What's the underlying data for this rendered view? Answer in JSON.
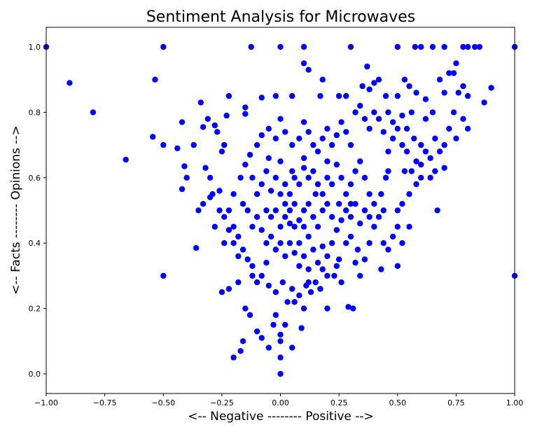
{
  "chart_data": {
    "type": "scatter",
    "title": "Sentiment Analysis for Microwaves",
    "xlabel": "<-- Negative -------- Positive -->",
    "ylabel": "<-- Facts -------- Opinions -->",
    "xlim": [
      -1.0,
      1.0
    ],
    "ylim": [
      -0.06,
      1.06
    ],
    "x_ticks": [
      -1.0,
      -0.75,
      -0.5,
      -0.25,
      0.0,
      0.25,
      0.5,
      0.75,
      1.0
    ],
    "x_tick_labels": [
      "−1.00",
      "−0.75",
      "−0.50",
      "−0.25",
      "0.00",
      "0.25",
      "0.50",
      "0.75",
      "1.00"
    ],
    "y_ticks": [
      0.0,
      0.2,
      0.4,
      0.6,
      0.8,
      1.0
    ],
    "y_tick_labels": [
      "0.0",
      "0.2",
      "0.4",
      "0.6",
      "0.8",
      "1.0"
    ],
    "grid": false,
    "legend": "none",
    "marker_color": "#0000ff",
    "series": [
      {
        "points": [
          [
            -1.0,
            1.0
          ],
          [
            -0.5,
            1.0
          ],
          [
            -0.125,
            1.0
          ],
          [
            0.0,
            1.0
          ],
          [
            0.1,
            1.0
          ],
          [
            0.3,
            1.0
          ],
          [
            0.5,
            1.0
          ],
          [
            0.575,
            1.0
          ],
          [
            0.6,
            1.0
          ],
          [
            0.65,
            1.0
          ],
          [
            0.7,
            1.0
          ],
          [
            0.78,
            1.0
          ],
          [
            0.8,
            1.0
          ],
          [
            0.83,
            1.0
          ],
          [
            0.85,
            1.0
          ],
          [
            1.0,
            1.0
          ],
          [
            -0.9,
            0.89
          ],
          [
            -0.8,
            0.8
          ],
          [
            -0.66,
            0.655
          ],
          [
            -0.535,
            0.9
          ],
          [
            -0.545,
            0.725
          ],
          [
            -0.5,
            0.7
          ],
          [
            -0.5,
            0.3
          ],
          [
            1.0,
            0.3
          ],
          [
            -0.44,
            0.69
          ],
          [
            -0.42,
            0.77
          ],
          [
            -0.41,
            0.635
          ],
          [
            -0.42,
            0.565
          ],
          [
            -0.4,
            0.6
          ],
          [
            -0.37,
            0.7
          ],
          [
            -0.34,
            0.83
          ],
          [
            -0.33,
            0.755
          ],
          [
            -0.31,
            0.78
          ],
          [
            -0.28,
            0.76
          ],
          [
            -0.27,
            0.74
          ],
          [
            -0.22,
            0.85
          ],
          [
            -0.23,
            0.79
          ],
          [
            -0.24,
            0.7
          ],
          [
            -0.25,
            0.68
          ],
          [
            -0.3,
            0.6
          ],
          [
            -0.32,
            0.63
          ],
          [
            -0.35,
            0.5
          ],
          [
            -0.36,
            0.385
          ],
          [
            -0.33,
            0.52
          ],
          [
            -0.29,
            0.55
          ],
          [
            -0.26,
            0.56
          ],
          [
            -0.24,
            0.4
          ],
          [
            -0.25,
            0.25
          ],
          [
            -0.22,
            0.26
          ],
          [
            -0.2,
            0.05
          ],
          [
            -0.17,
            0.07
          ],
          [
            -0.16,
            0.1
          ],
          [
            -0.15,
            0.2
          ],
          [
            -0.18,
            0.28
          ],
          [
            -0.13,
            0.18
          ],
          [
            -0.1,
            0.13
          ],
          [
            -0.08,
            0.11
          ],
          [
            -0.05,
            0.08
          ],
          [
            -0.03,
            0.15
          ],
          [
            -0.02,
            0.18
          ],
          [
            0.0,
            0.0
          ],
          [
            0.0,
            0.05
          ],
          [
            0.0,
            0.1
          ],
          [
            0.0,
            0.12
          ],
          [
            0.02,
            0.15
          ],
          [
            0.05,
            0.08
          ],
          [
            0.09,
            0.14
          ],
          [
            0.06,
            0.22
          ],
          [
            0.1,
            0.2
          ],
          [
            0.2,
            0.2
          ],
          [
            0.29,
            0.205
          ],
          [
            0.31,
            0.2
          ],
          [
            0.43,
            0.32
          ],
          [
            0.5,
            0.33
          ],
          [
            0.67,
            0.5
          ],
          [
            -0.15,
            0.815
          ],
          [
            -0.15,
            0.795
          ],
          [
            -0.08,
            0.845
          ],
          [
            -0.02,
            0.85
          ],
          [
            0.05,
            0.85
          ],
          [
            0.1,
            0.95
          ],
          [
            0.12,
            0.93
          ],
          [
            0.17,
            0.85
          ],
          [
            0.18,
            0.9
          ],
          [
            0.25,
            0.85
          ],
          [
            0.28,
            0.85
          ],
          [
            0.35,
            0.88
          ],
          [
            0.37,
            0.94
          ],
          [
            0.38,
            0.87
          ],
          [
            0.4,
            0.89
          ],
          [
            0.42,
            0.9
          ],
          [
            0.45,
            0.85
          ],
          [
            0.5,
            0.85
          ],
          [
            0.53,
            0.9
          ],
          [
            0.55,
            0.88
          ],
          [
            0.58,
            0.86
          ],
          [
            0.62,
            0.84
          ],
          [
            0.68,
            0.9
          ],
          [
            0.7,
            0.86
          ],
          [
            0.72,
            0.92
          ],
          [
            0.74,
            0.92
          ],
          [
            0.75,
            0.95
          ],
          [
            0.76,
            0.86
          ],
          [
            0.78,
            0.88
          ],
          [
            0.8,
            0.85
          ],
          [
            0.87,
            0.83
          ],
          [
            0.9,
            0.875
          ],
          [
            0.8,
            0.75
          ],
          [
            0.78,
            0.78
          ],
          [
            0.74,
            0.8
          ],
          [
            0.72,
            0.75
          ],
          [
            0.75,
            0.72
          ],
          [
            0.7,
            0.7
          ],
          [
            0.68,
            0.68
          ],
          [
            0.7,
            0.63
          ],
          [
            0.66,
            0.62
          ],
          [
            0.6,
            0.6
          ],
          [
            0.58,
            0.65
          ],
          [
            0.55,
            0.55
          ],
          [
            0.52,
            0.52
          ],
          [
            0.5,
            0.5
          ],
          [
            0.6,
            0.7
          ],
          [
            0.62,
            0.78
          ],
          [
            0.65,
            0.8
          ],
          [
            0.66,
            0.72
          ],
          [
            0.64,
            0.66
          ],
          [
            0.56,
            0.8
          ],
          [
            0.54,
            0.75
          ],
          [
            0.52,
            0.7
          ],
          [
            0.48,
            0.72
          ],
          [
            0.46,
            0.68
          ],
          [
            0.45,
            0.6
          ],
          [
            0.43,
            0.55
          ],
          [
            0.42,
            0.48
          ],
          [
            0.4,
            0.45
          ],
          [
            0.38,
            0.4
          ],
          [
            0.36,
            0.35
          ],
          [
            0.33,
            0.38
          ],
          [
            0.3,
            0.42
          ],
          [
            0.28,
            0.4
          ],
          [
            0.25,
            0.35
          ],
          [
            0.23,
            0.3
          ],
          [
            0.2,
            0.3
          ],
          [
            0.17,
            0.26
          ],
          [
            0.15,
            0.28
          ],
          [
            0.13,
            0.25
          ],
          [
            0.11,
            0.27
          ],
          [
            0.08,
            0.24
          ],
          [
            0.05,
            0.26
          ],
          [
            0.03,
            0.22
          ],
          [
            0.01,
            0.28
          ],
          [
            -0.02,
            0.25
          ],
          [
            -0.05,
            0.27
          ],
          [
            -0.08,
            0.3
          ],
          [
            -0.1,
            0.28
          ],
          [
            -0.12,
            0.33
          ],
          [
            -0.14,
            0.35
          ],
          [
            -0.16,
            0.38
          ],
          [
            -0.18,
            0.42
          ],
          [
            -0.2,
            0.45
          ],
          [
            -0.22,
            0.5
          ],
          [
            -0.2,
            0.55
          ],
          [
            -0.17,
            0.6
          ],
          [
            -0.15,
            0.64
          ],
          [
            -0.13,
            0.67
          ],
          [
            -0.1,
            0.7
          ],
          [
            -0.08,
            0.73
          ],
          [
            -0.05,
            0.75
          ],
          [
            -0.02,
            0.72
          ],
          [
            0.0,
            0.78
          ],
          [
            0.02,
            0.74
          ],
          [
            0.05,
            0.7
          ],
          [
            0.08,
            0.72
          ],
          [
            0.1,
            0.77
          ],
          [
            0.12,
            0.74
          ],
          [
            0.14,
            0.7
          ],
          [
            0.16,
            0.68
          ],
          [
            0.18,
            0.72
          ],
          [
            0.2,
            0.75
          ],
          [
            0.22,
            0.7
          ],
          [
            0.24,
            0.73
          ],
          [
            0.26,
            0.77
          ],
          [
            0.28,
            0.74
          ],
          [
            0.3,
            0.7
          ],
          [
            0.32,
            0.8
          ],
          [
            0.34,
            0.82
          ],
          [
            0.36,
            0.78
          ],
          [
            0.38,
            0.75
          ],
          [
            0.4,
            0.8
          ],
          [
            0.42,
            0.78
          ],
          [
            0.44,
            0.74
          ],
          [
            0.46,
            0.8
          ],
          [
            0.48,
            0.77
          ],
          [
            0.5,
            0.75
          ],
          [
            0.52,
            0.79
          ],
          [
            0.54,
            0.68
          ],
          [
            0.56,
            0.62
          ],
          [
            0.58,
            0.58
          ],
          [
            0.6,
            0.64
          ],
          [
            0.62,
            0.68
          ],
          [
            0.64,
            0.6
          ],
          [
            0.55,
            0.45
          ],
          [
            0.52,
            0.4
          ],
          [
            0.48,
            0.42
          ],
          [
            0.46,
            0.38
          ],
          [
            0.44,
            0.5
          ],
          [
            0.4,
            0.52
          ],
          [
            0.38,
            0.55
          ],
          [
            0.36,
            0.6
          ],
          [
            0.34,
            0.65
          ],
          [
            0.32,
            0.62
          ],
          [
            0.3,
            0.58
          ],
          [
            0.28,
            0.55
          ],
          [
            0.26,
            0.6
          ],
          [
            0.24,
            0.64
          ],
          [
            0.22,
            0.58
          ],
          [
            0.2,
            0.6
          ],
          [
            0.18,
            0.55
          ],
          [
            0.16,
            0.58
          ],
          [
            0.14,
            0.62
          ],
          [
            0.12,
            0.6
          ],
          [
            0.1,
            0.63
          ],
          [
            0.08,
            0.58
          ],
          [
            0.06,
            0.6
          ],
          [
            0.04,
            0.55
          ],
          [
            0.02,
            0.58
          ],
          [
            0.0,
            0.55
          ],
          [
            -0.02,
            0.6
          ],
          [
            -0.04,
            0.56
          ],
          [
            -0.06,
            0.62
          ],
          [
            -0.08,
            0.58
          ],
          [
            -0.1,
            0.55
          ],
          [
            -0.12,
            0.6
          ],
          [
            -0.14,
            0.5
          ],
          [
            -0.16,
            0.52
          ],
          [
            -0.12,
            0.45
          ],
          [
            -0.1,
            0.48
          ],
          [
            -0.08,
            0.44
          ],
          [
            -0.06,
            0.4
          ],
          [
            -0.04,
            0.42
          ],
          [
            -0.02,
            0.38
          ],
          [
            0.0,
            0.4
          ],
          [
            0.02,
            0.36
          ],
          [
            0.04,
            0.4
          ],
          [
            0.06,
            0.37
          ],
          [
            0.08,
            0.33
          ],
          [
            0.1,
            0.36
          ],
          [
            0.12,
            0.32
          ],
          [
            0.14,
            0.38
          ],
          [
            0.16,
            0.34
          ],
          [
            0.18,
            0.39
          ],
          [
            0.2,
            0.36
          ],
          [
            0.22,
            0.4
          ],
          [
            0.24,
            0.44
          ],
          [
            0.26,
            0.47
          ],
          [
            0.28,
            0.5
          ],
          [
            0.3,
            0.48
          ],
          [
            0.32,
            0.52
          ],
          [
            0.34,
            0.46
          ],
          [
            0.36,
            0.5
          ],
          [
            0.38,
            0.48
          ],
          [
            0.0,
            0.45
          ],
          [
            0.02,
            0.48
          ],
          [
            0.04,
            0.5
          ],
          [
            0.06,
            0.45
          ],
          [
            0.08,
            0.47
          ],
          [
            0.1,
            0.5
          ],
          [
            0.12,
            0.52
          ],
          [
            0.14,
            0.48
          ],
          [
            0.16,
            0.45
          ],
          [
            0.18,
            0.5
          ],
          [
            0.2,
            0.52
          ],
          [
            0.22,
            0.48
          ],
          [
            0.1,
            0.45
          ],
          [
            0.12,
            0.42
          ],
          [
            0.08,
            0.4
          ],
          [
            0.06,
            0.52
          ],
          [
            0.04,
            0.46
          ],
          [
            0.02,
            0.52
          ],
          [
            -0.02,
            0.5
          ],
          [
            -0.04,
            0.48
          ],
          [
            -0.06,
            0.5
          ],
          [
            0.15,
            0.55
          ],
          [
            0.05,
            0.62
          ],
          [
            0.0,
            0.65
          ],
          [
            -0.05,
            0.66
          ],
          [
            0.1,
            0.66
          ],
          [
            0.2,
            0.65
          ],
          [
            0.25,
            0.52
          ],
          [
            0.3,
            0.52
          ],
          [
            -0.3,
            0.54
          ],
          [
            -0.26,
            0.5
          ],
          [
            -0.28,
            0.45
          ],
          [
            -0.24,
            0.48
          ],
          [
            -0.22,
            0.44
          ],
          [
            -0.2,
            0.4
          ],
          [
            -0.18,
            0.36
          ],
          [
            -0.12,
            0.3
          ],
          [
            -0.06,
            0.34
          ],
          [
            0.12,
            0.28
          ],
          [
            0.18,
            0.32
          ],
          [
            0.24,
            0.33
          ],
          [
            0.26,
            0.28
          ],
          [
            0.32,
            0.34
          ],
          [
            0.34,
            0.3
          ],
          [
            0.44,
            0.4
          ],
          [
            0.5,
            0.45
          ],
          [
            0.53,
            0.62
          ],
          [
            0.57,
            0.72
          ],
          [
            0.46,
            0.62
          ]
        ]
      }
    ]
  }
}
